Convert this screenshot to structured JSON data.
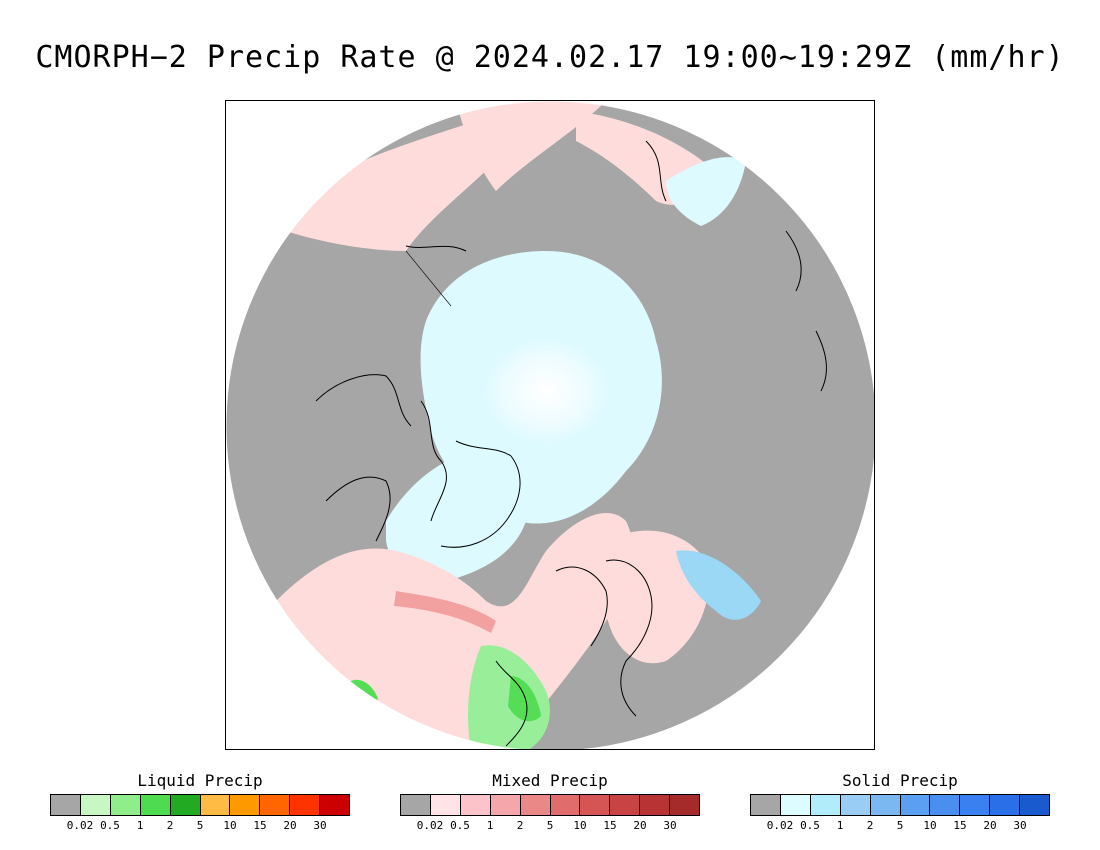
{
  "title": "CMORPH−2 Precip Rate @ 2024.02.17 19:00∼19:29Z (mm/hr)",
  "map": {
    "projection": "north-polar-stereographic",
    "colors": {
      "no_precip": "#a6a6a6",
      "mixed_light": "#ffdcdc",
      "solid_light": "#dcfaff",
      "solid_white": "#ffffff",
      "solid_medium": "#9ad8f5",
      "mixed_medium": "#f3a0a0",
      "liquid_light": "#99ee99",
      "liquid_medium": "#55dd55",
      "coastline": "#000000"
    },
    "icon": "polar-globe-icon"
  },
  "legends": [
    {
      "title": "Liquid Precip",
      "colors": [
        "#a6a6a6",
        "#c7f8c3",
        "#8fee8a",
        "#4fdb4f",
        "#22aa22",
        "#ffbb44",
        "#ff9900",
        "#ff6600",
        "#ff3300",
        "#cc0000"
      ],
      "ticks": [
        "0.02",
        "0.5",
        "1",
        "2",
        "5",
        "10",
        "15",
        "20",
        "30"
      ]
    },
    {
      "title": "Mixed Precip",
      "colors": [
        "#a6a6a6",
        "#ffe3e6",
        "#fcc3c8",
        "#f4a6aa",
        "#ea8888",
        "#e06c6c",
        "#d55555",
        "#c84444",
        "#b83333",
        "#a52a2a"
      ],
      "ticks": [
        "0.02",
        "0.5",
        "1",
        "2",
        "5",
        "10",
        "15",
        "20",
        "30"
      ]
    },
    {
      "title": "Solid Precip",
      "colors": [
        "#a6a6a6",
        "#ddfcff",
        "#b0ecfa",
        "#99cdf5",
        "#7bb8f1",
        "#5a9ff0",
        "#4a8ef0",
        "#3a80f0",
        "#2a6fe8",
        "#1a5acf"
      ],
      "ticks": [
        "0.02",
        "0.5",
        "1",
        "2",
        "5",
        "10",
        "15",
        "20",
        "30"
      ]
    }
  ]
}
